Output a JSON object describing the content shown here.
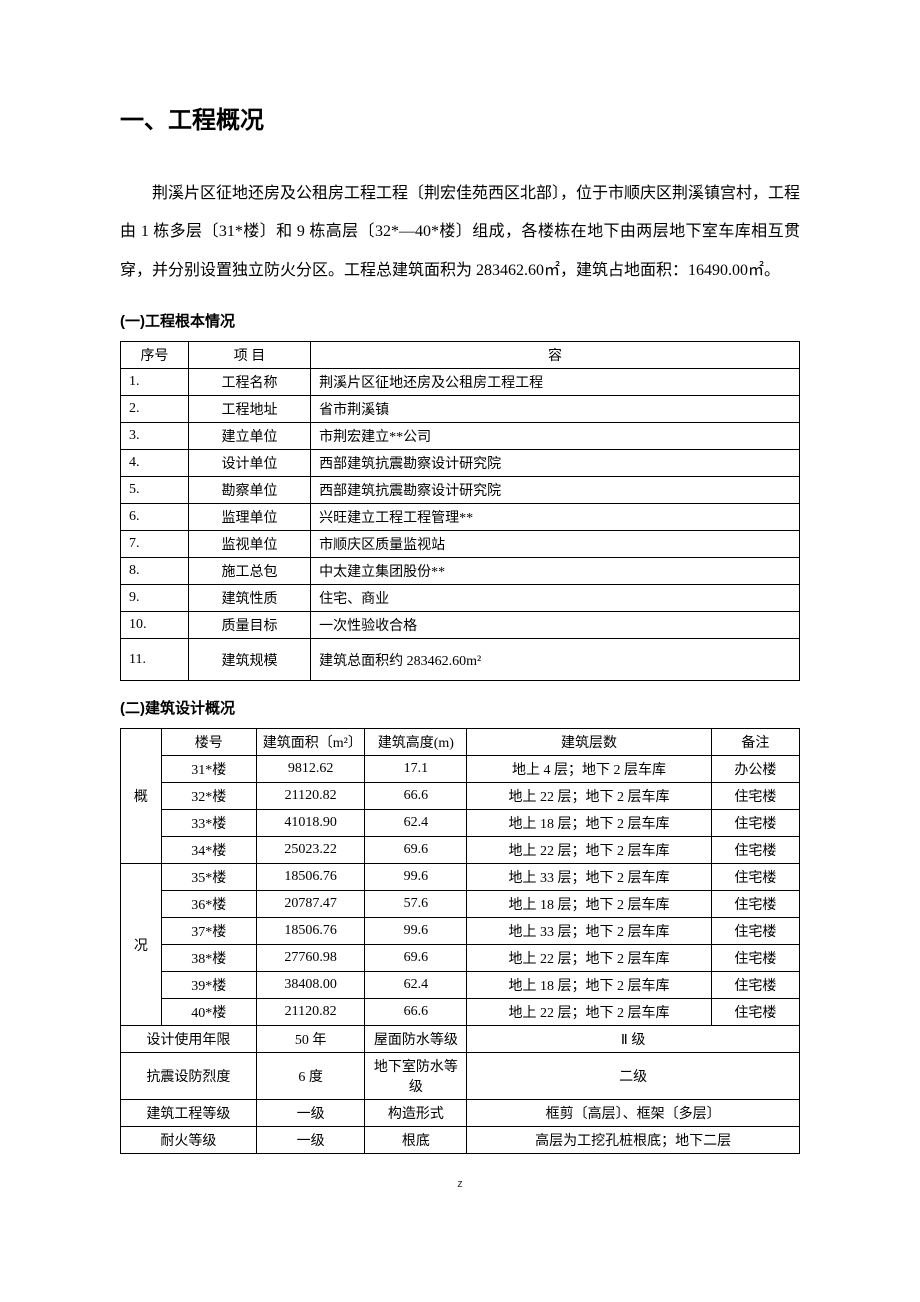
{
  "heading": "一、工程概况",
  "paragraph": "荆溪片区征地还房及公租房工程工程〔荆宏佳苑西区北部〕，位于市顺庆区荆溪镇宫村，工程由 1 栋多层〔31*楼〕和 9 栋高层〔32*—40*楼〕组成，各楼栋在地下由两层地下室车库相互贯穿，并分别设置独立防火分区。工程总建筑面积为 283462.60㎡，建筑占地面积：16490.00㎡。",
  "section1": {
    "title": "(一)工程根本情况",
    "headers": {
      "seq": "序号",
      "item": "项 目",
      "content": "容"
    },
    "rows": [
      {
        "seq": "1.",
        "item": "工程名称",
        "content": "荆溪片区征地还房及公租房工程工程"
      },
      {
        "seq": "2.",
        "item": "工程地址",
        "content": "省市荆溪镇"
      },
      {
        "seq": "3.",
        "item": "建立单位",
        "content": "市荆宏建立**公司"
      },
      {
        "seq": "4.",
        "item": "设计单位",
        "content": "西部建筑抗震勘察设计研究院"
      },
      {
        "seq": "5.",
        "item": "勘察单位",
        "content": "西部建筑抗震勘察设计研究院"
      },
      {
        "seq": "6.",
        "item": "监理单位",
        "content": "兴旺建立工程工程管理**"
      },
      {
        "seq": "7.",
        "item": "监视单位",
        "content": "市顺庆区质量监视站"
      },
      {
        "seq": "8.",
        "item": "施工总包",
        "content": "中太建立集团股份**"
      },
      {
        "seq": "9.",
        "item": "建筑性质",
        "content": "住宅、商业"
      },
      {
        "seq": "10.",
        "item": "质量目标",
        "content": "一次性验收合格"
      },
      {
        "seq": "11.",
        "item": "建筑规模",
        "content": "建筑总面积约 283462.60m²"
      }
    ]
  },
  "section2": {
    "title": "(二)建筑设计概况",
    "vlabel_top": "概",
    "vlabel_bottom": "况",
    "headers": {
      "building": "楼号",
      "area": "建筑面积〔m²〕",
      "height": "建筑高度(m)",
      "floors": "建筑层数",
      "remark": "备注"
    },
    "rows": [
      {
        "building": "31*楼",
        "area": "9812.62",
        "height": "17.1",
        "floors": "地上 4 层；地下 2 层车库",
        "remark": "办公楼"
      },
      {
        "building": "32*楼",
        "area": "21120.82",
        "height": "66.6",
        "floors": "地上 22 层；地下 2 层车库",
        "remark": "住宅楼"
      },
      {
        "building": "33*楼",
        "area": "41018.90",
        "height": "62.4",
        "floors": "地上 18 层；地下 2 层车库",
        "remark": "住宅楼"
      },
      {
        "building": "34*楼",
        "area": "25023.22",
        "height": "69.6",
        "floors": "地上 22 层；地下 2 层车库",
        "remark": "住宅楼"
      },
      {
        "building": "35*楼",
        "area": "18506.76",
        "height": "99.6",
        "floors": "地上 33 层；地下 2 层车库",
        "remark": "住宅楼"
      },
      {
        "building": "36*楼",
        "area": "20787.47",
        "height": "57.6",
        "floors": "地上 18 层；地下 2 层车库",
        "remark": "住宅楼"
      },
      {
        "building": "37*楼",
        "area": "18506.76",
        "height": "99.6",
        "floors": "地上 33 层；地下 2 层车库",
        "remark": "住宅楼"
      },
      {
        "building": "38*楼",
        "area": "27760.98",
        "height": "69.6",
        "floors": "地上 22 层；地下 2 层车库",
        "remark": "住宅楼"
      },
      {
        "building": "39*楼",
        "area": "38408.00",
        "height": "62.4",
        "floors": "地上 18 层；地下 2 层车库",
        "remark": "住宅楼"
      },
      {
        "building": "40*楼",
        "area": "21120.82",
        "height": "66.6",
        "floors": "地上 22 层；地下 2 层车库",
        "remark": "住宅楼"
      }
    ],
    "bottom": [
      {
        "k1": "设计使用年限",
        "v1": "50 年",
        "k2": "屋面防水等级",
        "v2": "Ⅱ 级"
      },
      {
        "k1": "抗震设防烈度",
        "v1": "6 度",
        "k2": "地下室防水等级",
        "v2": "二级"
      },
      {
        "k1": "建筑工程等级",
        "v1": "一级",
        "k2": "构造形式",
        "v2": "框剪〔高层〕、框架〔多层〕"
      },
      {
        "k1": "耐火等级",
        "v1": "一级",
        "k2": "根底",
        "v2": "高层为工挖孔桩根底；地下二层"
      }
    ]
  },
  "footer": "z",
  "table1_widths": {
    "seq": "10%",
    "item": "18%",
    "content": "72%"
  },
  "table2_widths": {
    "side": "6%",
    "building": "14%",
    "area": "16%",
    "height": "15%",
    "floors": "36%",
    "remark": "13%"
  }
}
